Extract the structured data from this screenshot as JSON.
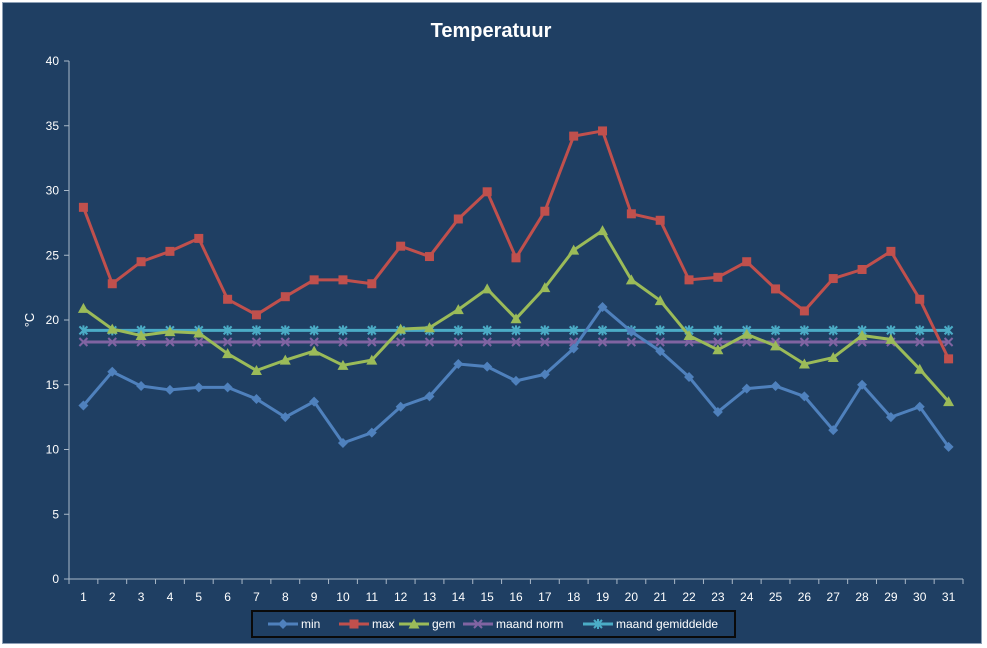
{
  "chart_data": {
    "type": "line",
    "title": "Temperatuur",
    "xlabel": "",
    "ylabel": "°C",
    "ylim": [
      0,
      40
    ],
    "yticks": [
      0,
      5,
      10,
      15,
      20,
      25,
      30,
      35,
      40
    ],
    "x": [
      1,
      2,
      3,
      4,
      5,
      6,
      7,
      8,
      9,
      10,
      11,
      12,
      13,
      14,
      15,
      16,
      17,
      18,
      19,
      20,
      21,
      22,
      23,
      24,
      25,
      26,
      27,
      28,
      29,
      30,
      31
    ],
    "grid": false,
    "legend_position": "bottom",
    "series": [
      {
        "name": "min",
        "color": "#4f81bd",
        "marker": "diamond",
        "values": [
          13.4,
          16.0,
          14.9,
          14.6,
          14.8,
          14.8,
          13.9,
          12.5,
          13.7,
          10.5,
          11.3,
          13.3,
          14.1,
          16.6,
          16.4,
          15.3,
          15.8,
          17.8,
          21.0,
          19.1,
          17.6,
          15.6,
          12.9,
          14.7,
          14.9,
          14.1,
          11.5,
          15.0,
          12.5,
          13.3,
          10.2
        ]
      },
      {
        "name": "max",
        "color": "#c0504d",
        "marker": "square",
        "values": [
          28.7,
          22.8,
          24.5,
          25.3,
          26.3,
          21.6,
          20.4,
          21.8,
          23.1,
          23.1,
          22.8,
          25.7,
          24.9,
          27.8,
          29.9,
          24.8,
          28.4,
          34.2,
          34.6,
          28.2,
          27.7,
          23.1,
          23.3,
          24.5,
          22.4,
          20.7,
          23.2,
          23.9,
          25.3,
          21.6,
          17.0
        ]
      },
      {
        "name": "gem",
        "color": "#9bbb59",
        "marker": "triangle",
        "values": [
          20.9,
          19.3,
          18.8,
          19.1,
          19.0,
          17.4,
          16.1,
          16.9,
          17.6,
          16.5,
          16.9,
          19.3,
          19.4,
          20.8,
          22.4,
          20.1,
          22.5,
          25.4,
          26.9,
          23.1,
          21.5,
          18.8,
          17.7,
          18.9,
          18.0,
          16.6,
          17.1,
          18.8,
          18.5,
          16.2,
          13.7
        ]
      },
      {
        "name": "maand norm",
        "color": "#8064a2",
        "marker": "x",
        "values": [
          18.3,
          18.3,
          18.3,
          18.3,
          18.3,
          18.3,
          18.3,
          18.3,
          18.3,
          18.3,
          18.3,
          18.3,
          18.3,
          18.3,
          18.3,
          18.3,
          18.3,
          18.3,
          18.3,
          18.3,
          18.3,
          18.3,
          18.3,
          18.3,
          18.3,
          18.3,
          18.3,
          18.3,
          18.3,
          18.3,
          18.3
        ]
      },
      {
        "name": "maand gemiddelde",
        "color": "#4bacc6",
        "marker": "star",
        "values": [
          19.2,
          19.2,
          19.2,
          19.2,
          19.2,
          19.2,
          19.2,
          19.2,
          19.2,
          19.2,
          19.2,
          19.2,
          19.2,
          19.2,
          19.2,
          19.2,
          19.2,
          19.2,
          19.2,
          19.2,
          19.2,
          19.2,
          19.2,
          19.2,
          19.2,
          19.2,
          19.2,
          19.2,
          19.2,
          19.2,
          19.2
        ]
      }
    ]
  }
}
